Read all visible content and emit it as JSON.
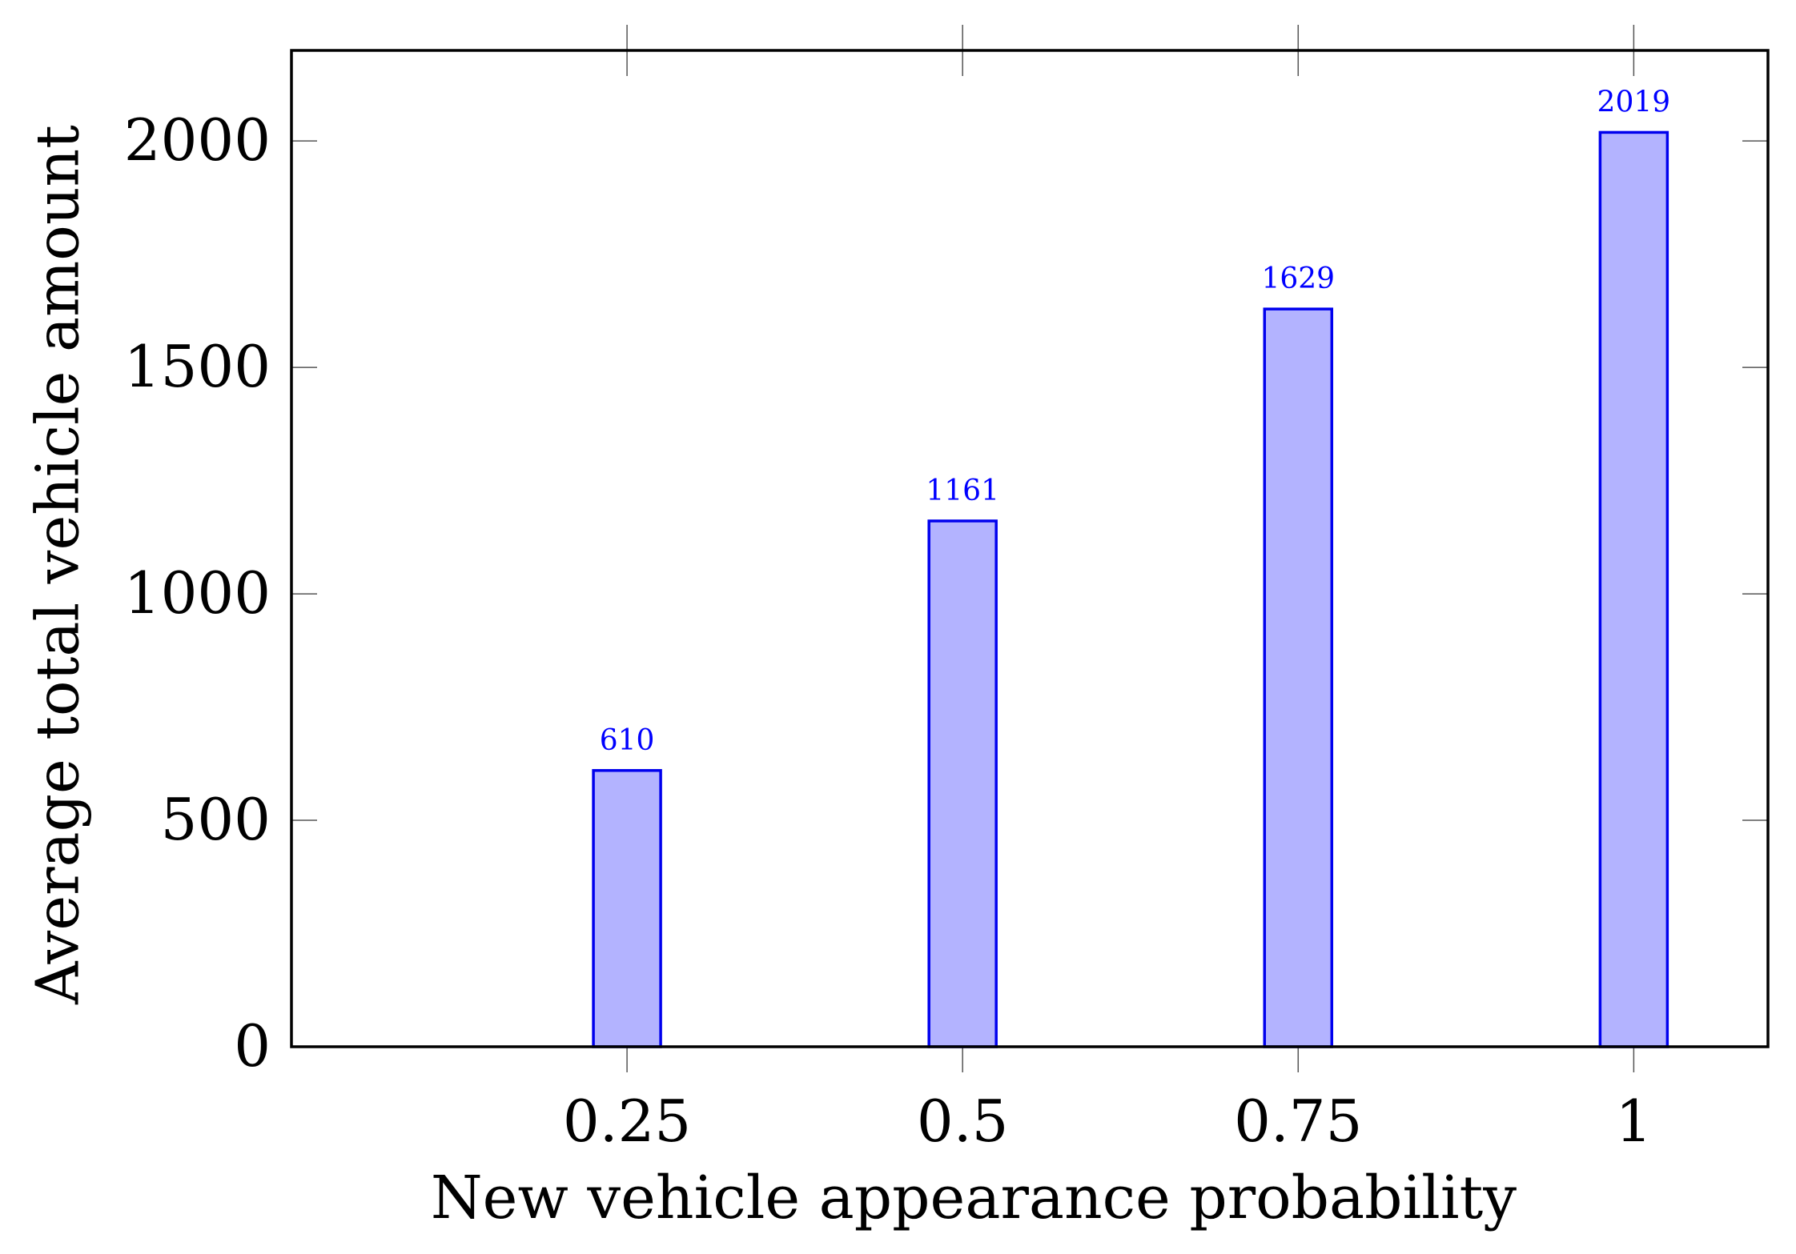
{
  "chart_data": {
    "type": "bar",
    "title": "",
    "xlabel": "New vehicle appearance probability",
    "ylabel": "Average total vehicle amount",
    "x": [
      0.25,
      0.5,
      0.75,
      1
    ],
    "x_tick_labels": [
      "0.25",
      "0.5",
      "0.75",
      "1"
    ],
    "values": [
      610,
      1161,
      1629,
      2019
    ],
    "value_labels": [
      "610",
      "1161",
      "1629",
      "2019"
    ],
    "xlim": [
      0,
      1.1
    ],
    "ylim": [
      0,
      2200
    ],
    "y_ticks": [
      0,
      500,
      1000,
      1500,
      2000
    ],
    "y_tick_labels": [
      "0",
      "500",
      "1000",
      "1500",
      "2000"
    ],
    "grid": false,
    "legend": "none",
    "colors": {
      "bar_fill": "#b3b3ff",
      "bar_stroke": "#0000ee",
      "data_label": "#0000ff",
      "axis": "#000000"
    }
  }
}
